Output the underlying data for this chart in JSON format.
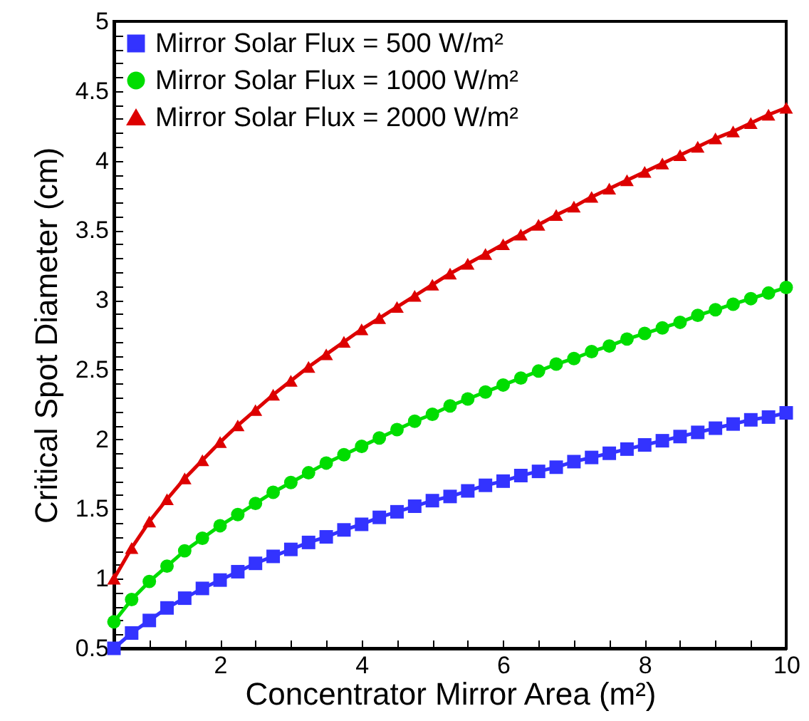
{
  "chart_data": {
    "type": "line",
    "xlabel": "Concentrator Mirror Area (m²)",
    "ylabel": "Critical Spot Diameter (cm)",
    "x": [
      0.5,
      0.75,
      1,
      1.25,
      1.5,
      1.75,
      2,
      2.25,
      2.5,
      2.75,
      3,
      3.25,
      3.5,
      3.75,
      4,
      4.25,
      4.5,
      4.75,
      5,
      5.25,
      5.5,
      5.75,
      6,
      6.25,
      6.5,
      6.75,
      7,
      7.25,
      7.5,
      7.75,
      8,
      8.25,
      8.5,
      8.75,
      9,
      9.25,
      9.5,
      9.75,
      10
    ],
    "series": [
      {
        "name": "Mirror Solar Flux = 500 W/m²",
        "color": "#3333ff",
        "marker": "square",
        "values": [
          0.5,
          0.61,
          0.7,
          0.79,
          0.86,
          0.93,
          0.99,
          1.05,
          1.11,
          1.16,
          1.21,
          1.26,
          1.3,
          1.35,
          1.39,
          1.44,
          1.48,
          1.52,
          1.56,
          1.59,
          1.63,
          1.67,
          1.7,
          1.74,
          1.77,
          1.8,
          1.84,
          1.87,
          1.9,
          1.93,
          1.96,
          1.99,
          2.02,
          2.05,
          2.08,
          2.11,
          2.14,
          2.16,
          2.19
        ]
      },
      {
        "name": "Mirror Solar Flux = 1000 W/m²",
        "color": "#00dd00",
        "marker": "circle",
        "values": [
          0.69,
          0.85,
          0.98,
          1.09,
          1.2,
          1.29,
          1.38,
          1.46,
          1.54,
          1.62,
          1.69,
          1.76,
          1.83,
          1.89,
          1.95,
          2.01,
          2.07,
          2.13,
          2.18,
          2.24,
          2.29,
          2.34,
          2.39,
          2.44,
          2.49,
          2.54,
          2.58,
          2.63,
          2.67,
          2.72,
          2.76,
          2.8,
          2.84,
          2.89,
          2.93,
          2.97,
          3.01,
          3.05,
          3.09
        ]
      },
      {
        "name": "Mirror Solar Flux = 2000 W/m²",
        "color": "#dd0000",
        "marker": "triangle",
        "values": [
          1.0,
          1.22,
          1.41,
          1.57,
          1.72,
          1.85,
          1.98,
          2.1,
          2.21,
          2.32,
          2.42,
          2.52,
          2.61,
          2.7,
          2.79,
          2.87,
          2.95,
          3.03,
          3.11,
          3.19,
          3.26,
          3.33,
          3.4,
          3.47,
          3.54,
          3.61,
          3.67,
          3.74,
          3.8,
          3.86,
          3.92,
          3.98,
          4.04,
          4.1,
          4.16,
          4.21,
          4.27,
          4.33,
          4.38
        ]
      }
    ],
    "xlim": [
      0.5,
      10
    ],
    "xticks": [
      {
        "value": 1,
        "label": null
      },
      {
        "value": 1.5,
        "label": null
      },
      2,
      {
        "value": 2.5,
        "label": null
      },
      {
        "value": 3,
        "label": null
      },
      {
        "value": 3.5,
        "label": null
      },
      4,
      {
        "value": 4.5,
        "label": null
      },
      {
        "value": 5,
        "label": null
      },
      {
        "value": 5.5,
        "label": null
      },
      6,
      {
        "value": 6.5,
        "label": null
      },
      {
        "value": 7,
        "label": null
      },
      {
        "value": 7.5,
        "label": null
      },
      8,
      {
        "value": 8.5,
        "label": null
      },
      {
        "value": 9,
        "label": null
      },
      {
        "value": 9.5,
        "label": null
      },
      10
    ],
    "ylim": [
      0.5,
      5
    ],
    "yticks": [
      0.5,
      {
        "value": 0.6,
        "label": null
      },
      {
        "value": 0.7,
        "label": null
      },
      {
        "value": 0.8,
        "label": null
      },
      {
        "value": 0.9,
        "label": null
      },
      1,
      {
        "value": 1.1,
        "label": null
      },
      {
        "value": 1.2,
        "label": null
      },
      {
        "value": 1.3,
        "label": null
      },
      {
        "value": 1.4,
        "label": null
      },
      {
        "value": 1.5,
        "label": "1.5"
      },
      {
        "value": 1.6,
        "label": null
      },
      {
        "value": 1.7,
        "label": null
      },
      {
        "value": 1.8,
        "label": null
      },
      {
        "value": 1.9,
        "label": null
      },
      2,
      {
        "value": 2.1,
        "label": null
      },
      {
        "value": 2.2,
        "label": null
      },
      {
        "value": 2.3,
        "label": null
      },
      {
        "value": 2.4,
        "label": null
      },
      {
        "value": 2.5,
        "label": "2.5"
      },
      {
        "value": 2.6,
        "label": null
      },
      {
        "value": 2.7,
        "label": null
      },
      {
        "value": 2.8,
        "label": null
      },
      {
        "value": 2.9,
        "label": null
      },
      3,
      {
        "value": 3.1,
        "label": null
      },
      {
        "value": 3.2,
        "label": null
      },
      {
        "value": 3.3,
        "label": null
      },
      {
        "value": 3.4,
        "label": null
      },
      {
        "value": 3.5,
        "label": "3.5"
      },
      {
        "value": 3.6,
        "label": null
      },
      {
        "value": 3.7,
        "label": null
      },
      {
        "value": 3.8,
        "label": null
      },
      {
        "value": 3.9,
        "label": null
      },
      4,
      {
        "value": 4.1,
        "label": null
      },
      {
        "value": 4.2,
        "label": null
      },
      {
        "value": 4.3,
        "label": null
      },
      {
        "value": 4.4,
        "label": null
      },
      {
        "value": 4.5,
        "label": "4.5"
      },
      {
        "value": 4.6,
        "label": null
      },
      {
        "value": 4.7,
        "label": null
      },
      {
        "value": 4.8,
        "label": null
      },
      {
        "value": 4.9,
        "label": null
      },
      5
    ],
    "grid": false,
    "legend": "top left"
  }
}
